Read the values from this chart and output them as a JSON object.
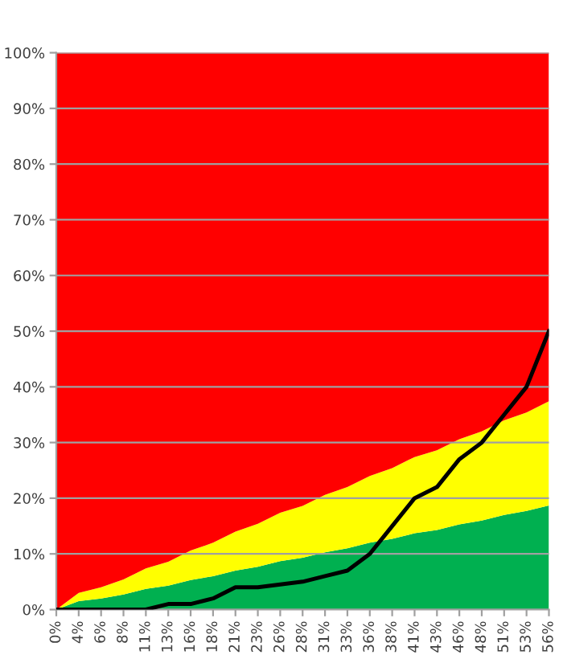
{
  "chart_data": {
    "type": "area",
    "stacked": true,
    "categories": [
      "0%",
      "4%",
      "6%",
      "8%",
      "11%",
      "13%",
      "16%",
      "18%",
      "21%",
      "23%",
      "26%",
      "28%",
      "31%",
      "33%",
      "36%",
      "38%",
      "41%",
      "43%",
      "46%",
      "48%",
      "51%",
      "53%",
      "56%"
    ],
    "series": [
      {
        "color": "#00b050",
        "values": [
          0,
          1.5,
          2,
          2.7,
          3.7,
          4.3,
          5.3,
          6,
          7,
          7.7,
          8.7,
          9.3,
          10.3,
          11,
          12,
          12.7,
          13.7,
          14.3,
          15.3,
          16,
          17,
          17.7,
          18.7
        ]
      },
      {
        "color": "#ffff00",
        "values": [
          0,
          1.5,
          2,
          2.7,
          3.7,
          4.3,
          5.3,
          6,
          7,
          7.7,
          8.7,
          9.3,
          10.3,
          11,
          12,
          12.7,
          13.7,
          14.3,
          15.3,
          16,
          17,
          17.7,
          18.7
        ]
      },
      {
        "color": "#ff0000",
        "values": [
          100,
          97,
          96,
          94.6,
          92.6,
          91.4,
          89.4,
          88,
          86,
          84.6,
          82.6,
          81.4,
          79.4,
          78,
          76,
          74.6,
          72.6,
          71.4,
          69.4,
          68,
          66,
          64.6,
          62.6
        ]
      },
      {
        "type": "line",
        "color": "#000000",
        "values": [
          0,
          0,
          0,
          0,
          0,
          1,
          1,
          2,
          4,
          4,
          4.5,
          5,
          6,
          7,
          10,
          15,
          20,
          22,
          27,
          30,
          35,
          40,
          50
        ]
      }
    ],
    "ylim": [
      0,
      100
    ],
    "yticks": [
      {
        "value": 0,
        "label": "0%"
      },
      {
        "value": 10,
        "label": "10%"
      },
      {
        "value": 20,
        "label": "20%"
      },
      {
        "value": 30,
        "label": "30%"
      },
      {
        "value": 40,
        "label": "40%"
      },
      {
        "value": 50,
        "label": "50%"
      },
      {
        "value": 60,
        "label": "60%"
      },
      {
        "value": 70,
        "label": "70%"
      },
      {
        "value": 80,
        "label": "80%"
      },
      {
        "value": 90,
        "label": "90%"
      },
      {
        "value": 100,
        "label": "100%"
      }
    ],
    "grid": "y",
    "marker": "none",
    "line_style": "solid",
    "legend": false
  }
}
